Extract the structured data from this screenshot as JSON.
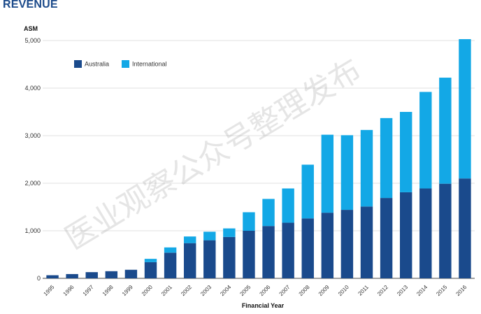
{
  "page": {
    "title": "REVENUE",
    "watermark": "医业观察公众号整理发布"
  },
  "colors": {
    "australia": "#1a4a8c",
    "international": "#13a8e6",
    "grid": "#d9d9d9",
    "axis": "#444444",
    "title": "#1b4a8a"
  },
  "chart_data": {
    "type": "bar",
    "stacked": true,
    "title": "",
    "ylabel": "ASM",
    "xlabel": "Financial Year",
    "ylim": [
      0,
      5000
    ],
    "yticks": [
      0,
      1000,
      2000,
      3000,
      4000,
      5000
    ],
    "ytick_labels": [
      "0",
      "1,000",
      "2,000",
      "3,000",
      "4,000",
      "5,000"
    ],
    "grid": true,
    "legend_position": "top-left",
    "categories": [
      "1995",
      "1996",
      "1997",
      "1998",
      "1999",
      "2000",
      "2001",
      "2002",
      "2003",
      "2004",
      "2005",
      "2006",
      "2007",
      "2008",
      "2009",
      "2010",
      "2011",
      "2012",
      "2013",
      "2014",
      "2015",
      "2016"
    ],
    "series": [
      {
        "name": "Australia",
        "color": "#1a4a8c",
        "values": [
          65,
          90,
          130,
          150,
          180,
          340,
          540,
          740,
          800,
          870,
          1000,
          1100,
          1170,
          1260,
          1380,
          1440,
          1510,
          1690,
          1810,
          1890,
          1990,
          2100
        ]
      },
      {
        "name": "International",
        "color": "#13a8e6",
        "values": [
          0,
          0,
          0,
          0,
          0,
          70,
          110,
          140,
          180,
          180,
          390,
          570,
          720,
          1130,
          1640,
          1570,
          1610,
          1680,
          1690,
          2030,
          2230,
          2930
        ]
      }
    ]
  }
}
